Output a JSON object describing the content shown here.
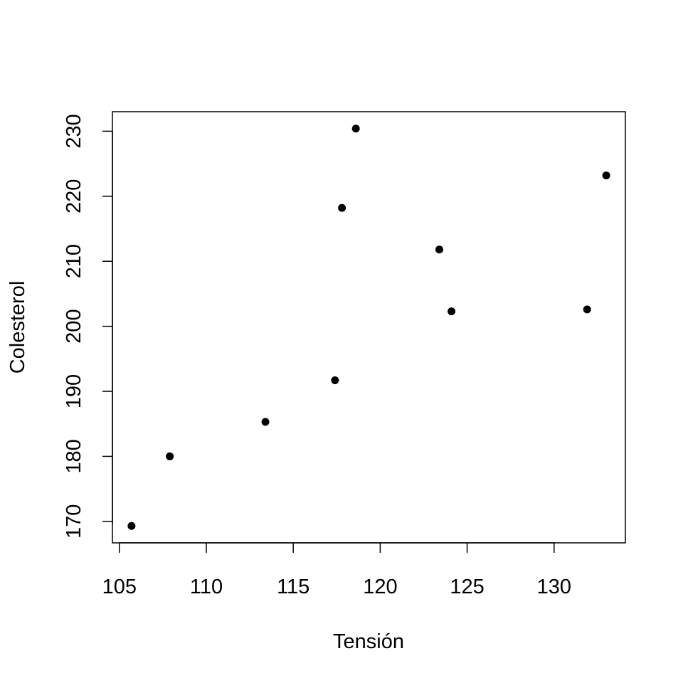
{
  "chart_data": {
    "type": "scatter",
    "title": "",
    "xlabel": "Tensión",
    "ylabel": "Colesterol",
    "xlim": [
      104.6,
      134.1
    ],
    "ylim": [
      166.7,
      233.0
    ],
    "x_ticks": [
      105,
      110,
      115,
      120,
      125,
      130
    ],
    "y_ticks": [
      170,
      180,
      190,
      200,
      210,
      220,
      230
    ],
    "grid": false,
    "legend": "none",
    "point_color": "#000000",
    "points": [
      {
        "x": 105.7,
        "y": 169.3
      },
      {
        "x": 107.9,
        "y": 180.0
      },
      {
        "x": 113.4,
        "y": 185.3
      },
      {
        "x": 117.4,
        "y": 191.7
      },
      {
        "x": 117.8,
        "y": 218.2
      },
      {
        "x": 118.6,
        "y": 230.4
      },
      {
        "x": 123.4,
        "y": 211.8
      },
      {
        "x": 124.1,
        "y": 202.3
      },
      {
        "x": 131.9,
        "y": 202.6
      },
      {
        "x": 133.0,
        "y": 223.2
      }
    ]
  }
}
